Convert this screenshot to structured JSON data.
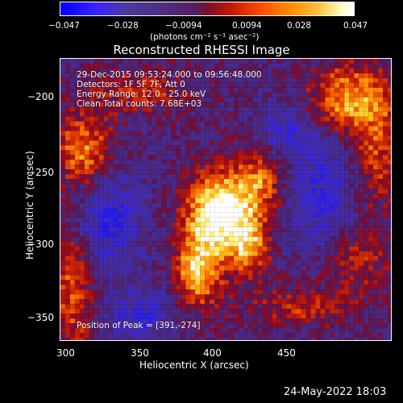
{
  "colorbar": {
    "ticks": [
      "−0.047",
      "−0.028",
      "−0.0094",
      "0.0094",
      "0.028",
      "0.047"
    ],
    "unit_label": "(photons cm⁻² s⁻¹ asec⁻²)"
  },
  "title": "Reconstructed RHESSI Image",
  "annotations": {
    "time_range": "29-Dec-2015 09:53:24.000 to 09:56:48.000",
    "detectors": "Detectors: 1F 5F 7F, Att 0",
    "energy_range": "Energy Range: 12.0 - 25.0 keV",
    "clean_counts": "Clean    Total counts: 7.68E+03",
    "peak_position": "Position of Peak = [391,-274]"
  },
  "axes": {
    "xlabel": "Heliocentric X (arcsec)",
    "ylabel": "Heliocentric Y (arcsec)",
    "xticks": [
      "300",
      "350",
      "400",
      "450"
    ],
    "yticks": [
      "−200",
      "−250",
      "−300",
      "−350"
    ]
  },
  "timestamp": "24-May-2022 18:03"
}
